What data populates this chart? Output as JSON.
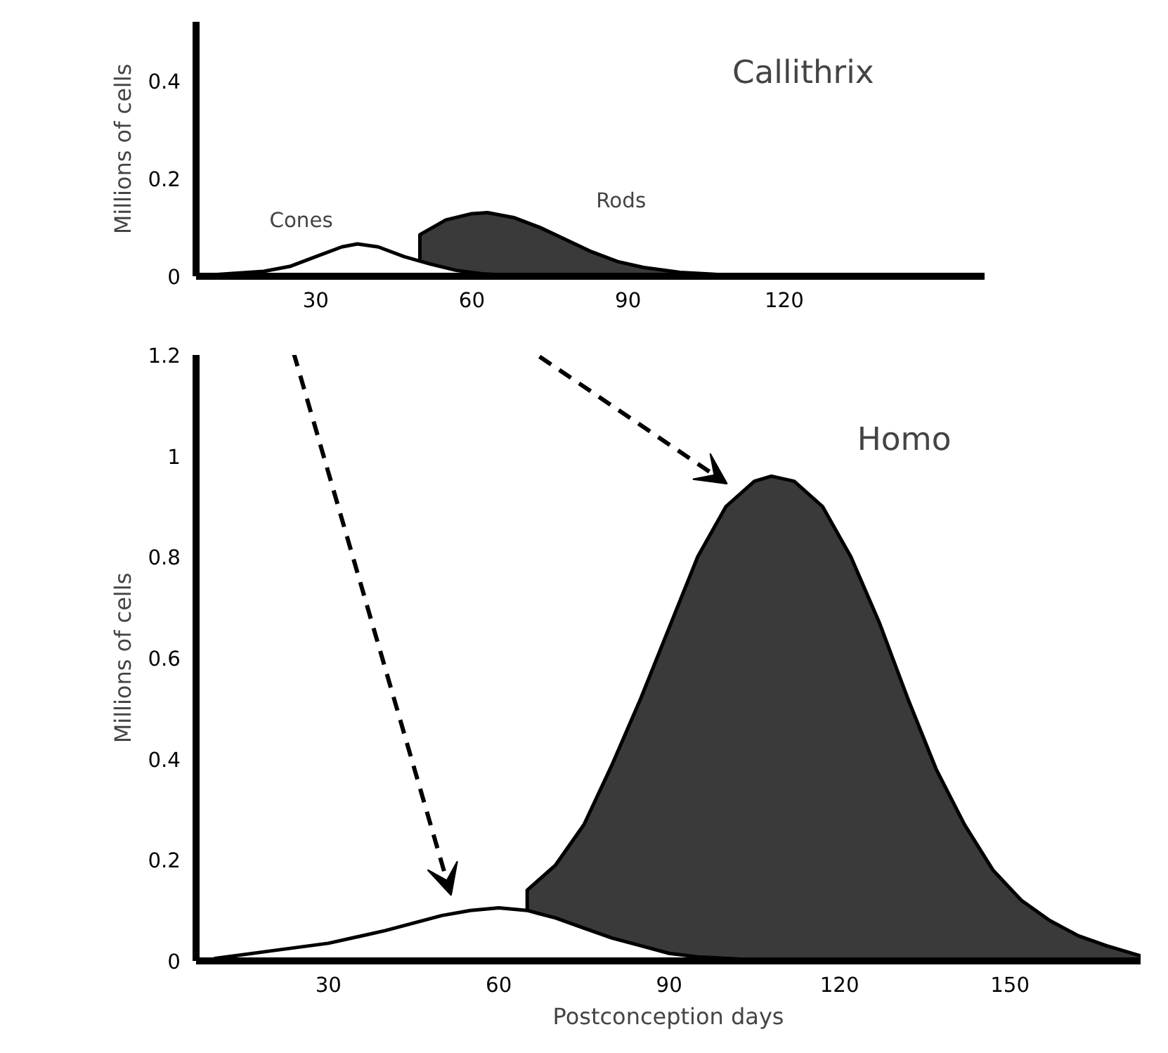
{
  "chart_data": [
    {
      "type": "area",
      "title": "Callithrix",
      "ylabel": "Millions of cells",
      "xlim": [
        7,
        158.5
      ],
      "ylim": [
        0,
        0.52
      ],
      "xticks": [
        30,
        60,
        90,
        120
      ],
      "yticks": [
        0,
        0.2,
        0.4
      ],
      "grid": false,
      "series": [
        {
          "name": "Rods",
          "color": "#3a3a3a",
          "x": [
            50,
            55,
            60,
            63,
            68,
            73,
            78,
            83,
            88,
            93,
            100,
            110
          ],
          "values": [
            0.085,
            0.115,
            0.128,
            0.13,
            0.12,
            0.1,
            0.075,
            0.05,
            0.03,
            0.018,
            0.008,
            0.002
          ]
        },
        {
          "name": "Cones",
          "color": "#ffffff",
          "x": [
            10,
            20,
            25,
            30,
            35,
            38,
            42,
            47,
            52,
            57,
            62,
            67
          ],
          "values": [
            0.003,
            0.01,
            0.02,
            0.04,
            0.06,
            0.066,
            0.06,
            0.04,
            0.025,
            0.012,
            0.005,
            0.002
          ]
        }
      ]
    },
    {
      "type": "area",
      "title": "Homo",
      "xlabel": "Postconception days",
      "ylabel": "Millions of cells",
      "xlim": [
        6.7,
        173
      ],
      "ylim": [
        0,
        1.2
      ],
      "xticks": [
        30,
        60,
        90,
        120,
        150
      ],
      "yticks": [
        0,
        0.2,
        0.4,
        0.6,
        0.8,
        1,
        1.2
      ],
      "grid": false,
      "series": [
        {
          "color": "#3a3a3a",
          "x": [
            65,
            70,
            75,
            80,
            85,
            90,
            95,
            100,
            105,
            108,
            112,
            117,
            122,
            127,
            132,
            137,
            142,
            147,
            152,
            157,
            162,
            167,
            173
          ],
          "values": [
            0.14,
            0.19,
            0.27,
            0.39,
            0.52,
            0.66,
            0.8,
            0.9,
            0.95,
            0.96,
            0.95,
            0.9,
            0.8,
            0.67,
            0.52,
            0.38,
            0.27,
            0.18,
            0.12,
            0.08,
            0.05,
            0.03,
            0.01
          ]
        },
        {
          "color": "#ffffff",
          "x": [
            10,
            20,
            30,
            40,
            50,
            55,
            60,
            65,
            70,
            75,
            80,
            85,
            90,
            95,
            105
          ],
          "values": [
            0.005,
            0.02,
            0.035,
            0.06,
            0.09,
            0.1,
            0.105,
            0.1,
            0.085,
            0.065,
            0.045,
            0.03,
            0.015,
            0.008,
            0.002
          ]
        }
      ]
    }
  ]
}
